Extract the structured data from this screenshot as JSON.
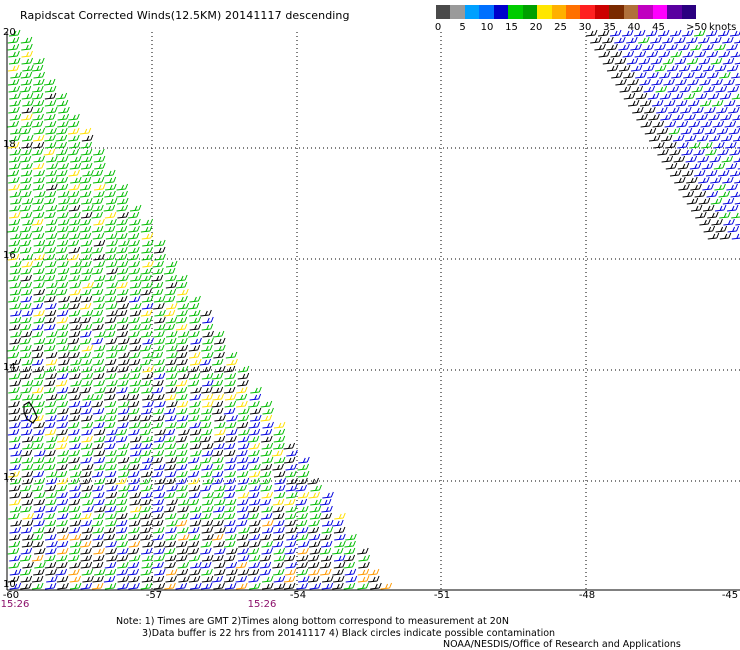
{
  "header": {
    "title": "Rapidscat Corrected Winds(12.5KM) 20141117 descending"
  },
  "legend": {
    "ticks": [
      "0",
      "5",
      "10",
      "15",
      "20",
      "25",
      "30",
      "35",
      "40",
      "45"
    ],
    "last_label": ">50",
    "units": "knots",
    "colors": [
      "#4a4a4a",
      "#9a9a9a",
      "#00a0ff",
      "#0070ff",
      "#0000cc",
      "#00cc00",
      "#00a000",
      "#ffe600",
      "#ffb000",
      "#ff7000",
      "#ff2020",
      "#cc0000",
      "#7a2a00",
      "#b0703a",
      "#c000c0",
      "#ff00ff",
      "#5a00a0",
      "#2a0080"
    ]
  },
  "map": {
    "lat_labels": [
      "20",
      "18",
      "16",
      "14",
      "12",
      "10"
    ],
    "lon_labels": [
      "-60",
      "-57",
      "-54",
      "-51",
      "-48",
      "-45"
    ],
    "time_labels": [
      "15:26",
      "15:26"
    ]
  },
  "notes": {
    "line1": "Note: 1) Times are GMT 2)Times along bottom correspond to measurement at 20N",
    "line2": "3)Data buffer is 22 hrs from 20141117 4) Black circles indicate possible contamination",
    "credit": "NOAA/NESDIS/Office of Research and Applications"
  },
  "wind_colors": {
    "calm": "#000000",
    "light": "#0000dd",
    "moderate": "#00bb00",
    "fresh": "#ffe000",
    "strong": "#ff9900"
  }
}
